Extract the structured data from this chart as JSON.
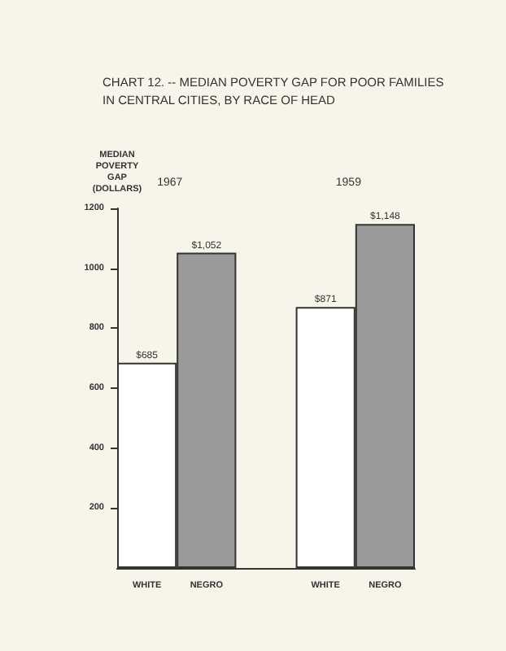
{
  "chart_data": {
    "type": "bar",
    "title": "CHART 12. -- MEDIAN POVERTY GAP FOR POOR FAMILIES\nIN CENTRAL CITIES, BY RACE OF HEAD",
    "ylabel": "MEDIAN\nPOVERTY\nGAP\n(DOLLARS)",
    "categories": [
      "WHITE",
      "NEGRO",
      null,
      "WHITE",
      "NEGRO"
    ],
    "values": [
      685,
      1052,
      null,
      871,
      1148
    ],
    "colors": [
      "#ffffff",
      "#9a9a9a",
      "#ffffff",
      "#ffffff",
      "#9a9a9a"
    ],
    "value_labels": [
      "$685",
      "$1,052",
      null,
      "$871",
      "$1,148"
    ],
    "annotations": [
      "1967",
      "1959"
    ],
    "ylim": [
      0,
      1200
    ],
    "yticks": [
      200,
      400,
      600,
      800,
      1000,
      1200
    ],
    "grid": false
  }
}
